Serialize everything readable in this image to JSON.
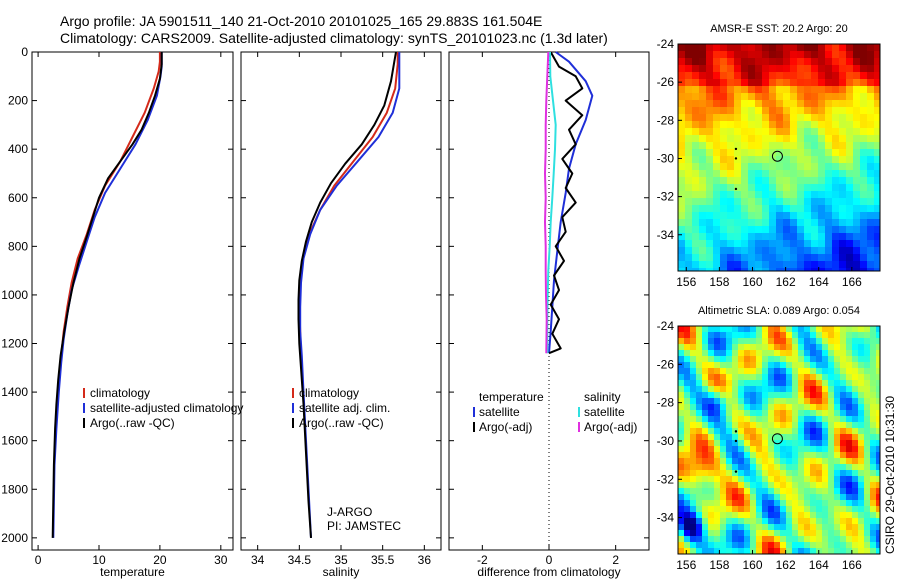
{
  "header": {
    "line1": "Argo profile: JA 5901511_140 21-Oct-2010 20101025_165 29.883S 161.504E",
    "line2": "Climatology: CARS2009. Satellite-adjusted climatology: synTS_20101023.nc (1.3d later)"
  },
  "credit": "CSIRO 29-Oct-2010 10:31:30",
  "colors": {
    "climatology": "#d42a1a",
    "satellite": "#1f2fd8",
    "argo": "#000000",
    "sal_satellite": "#2fe0e0",
    "sal_argo": "#e030e0"
  },
  "chart_data": [
    {
      "type": "line",
      "name": "temperature-profile",
      "xlabel": "temperature",
      "ylabel": "",
      "xlim": [
        -1,
        32
      ],
      "ylim": [
        2050,
        0
      ],
      "xticks": [
        0,
        10,
        20,
        30
      ],
      "yticks": [
        0,
        200,
        400,
        600,
        800,
        1000,
        1200,
        1400,
        1600,
        1800,
        2000
      ],
      "legend": [
        "climatology",
        "satellite-adjusted climatology",
        "Argo(..raw -QC)"
      ],
      "series": [
        {
          "name": "climatology",
          "color": "climatology",
          "points": [
            [
              20.0,
              0
            ],
            [
              20.0,
              40
            ],
            [
              19.8,
              80
            ],
            [
              19.0,
              150
            ],
            [
              17.5,
              250
            ],
            [
              15.5,
              350
            ],
            [
              13.5,
              450
            ],
            [
              11.0,
              550
            ],
            [
              9.3,
              650
            ],
            [
              8.0,
              750
            ],
            [
              6.5,
              850
            ],
            [
              5.5,
              950
            ],
            [
              4.8,
              1050
            ],
            [
              4.2,
              1150
            ],
            [
              3.8,
              1250
            ],
            [
              3.5,
              1350
            ]
          ]
        },
        {
          "name": "satellite",
          "color": "satellite",
          "points": [
            [
              20.3,
              0
            ],
            [
              20.3,
              60
            ],
            [
              20.1,
              100
            ],
            [
              19.5,
              180
            ],
            [
              18.0,
              280
            ],
            [
              16.0,
              380
            ],
            [
              13.5,
              480
            ],
            [
              11.0,
              580
            ],
            [
              9.3,
              680
            ],
            [
              8.0,
              780
            ],
            [
              6.7,
              880
            ],
            [
              5.5,
              980
            ],
            [
              4.8,
              1080
            ],
            [
              4.2,
              1180
            ],
            [
              3.8,
              1280
            ],
            [
              3.4,
              1400
            ],
            [
              3.0,
              1550
            ],
            [
              2.7,
              1700
            ],
            [
              2.6,
              1850
            ],
            [
              2.5,
              2000
            ]
          ]
        },
        {
          "name": "argo",
          "color": "argo",
          "points": [
            [
              20.3,
              0
            ],
            [
              20.3,
              50
            ],
            [
              20.0,
              110
            ],
            [
              19.2,
              180
            ],
            [
              18.2,
              250
            ],
            [
              17.0,
              320
            ],
            [
              15.5,
              380
            ],
            [
              13.5,
              450
            ],
            [
              11.5,
              520
            ],
            [
              10.0,
              600
            ],
            [
              9.0,
              680
            ],
            [
              8.0,
              760
            ],
            [
              6.8,
              850
            ],
            [
              5.8,
              950
            ],
            [
              5.0,
              1050
            ],
            [
              4.3,
              1150
            ],
            [
              3.7,
              1250
            ],
            [
              3.3,
              1350
            ],
            [
              3.0,
              1450
            ],
            [
              2.8,
              1550
            ],
            [
              2.6,
              1700
            ],
            [
              2.5,
              1850
            ],
            [
              2.4,
              2000
            ]
          ]
        }
      ]
    },
    {
      "type": "line",
      "name": "salinity-profile",
      "xlabel": "salinity",
      "xlim": [
        33.8,
        36.2
      ],
      "ylim": [
        2050,
        0
      ],
      "xticks": [
        34,
        34.5,
        35,
        35.5,
        36
      ],
      "legend": [
        "climatology",
        "satellite adj. clim.",
        "Argo(..raw -QC)"
      ],
      "annotation": [
        "J-ARGO",
        "PI: JAMSTEC"
      ],
      "series": [
        {
          "name": "climatology",
          "color": "climatology",
          "points": [
            [
              35.68,
              0
            ],
            [
              35.68,
              50
            ],
            [
              35.65,
              150
            ],
            [
              35.55,
              250
            ],
            [
              35.38,
              350
            ],
            [
              35.15,
              450
            ],
            [
              34.92,
              550
            ],
            [
              34.75,
              650
            ],
            [
              34.62,
              750
            ],
            [
              34.54,
              850
            ],
            [
              34.51,
              950
            ],
            [
              34.5,
              1050
            ],
            [
              34.51,
              1150
            ],
            [
              34.52,
              1250
            ]
          ]
        },
        {
          "name": "satellite",
          "color": "satellite",
          "points": [
            [
              35.7,
              0
            ],
            [
              35.7,
              60
            ],
            [
              35.7,
              150
            ],
            [
              35.62,
              250
            ],
            [
              35.45,
              350
            ],
            [
              35.2,
              450
            ],
            [
              34.95,
              550
            ],
            [
              34.75,
              650
            ],
            [
              34.63,
              750
            ],
            [
              34.55,
              850
            ],
            [
              34.52,
              950
            ],
            [
              34.51,
              1050
            ],
            [
              34.51,
              1150
            ],
            [
              34.53,
              1250
            ],
            [
              34.55,
              1400
            ],
            [
              34.58,
              1600
            ],
            [
              34.61,
              1800
            ],
            [
              34.64,
              2000
            ]
          ]
        },
        {
          "name": "argo",
          "color": "argo",
          "points": [
            [
              35.66,
              0
            ],
            [
              35.64,
              40
            ],
            [
              35.6,
              120
            ],
            [
              35.52,
              220
            ],
            [
              35.4,
              300
            ],
            [
              35.25,
              380
            ],
            [
              35.05,
              460
            ],
            [
              34.88,
              540
            ],
            [
              34.75,
              620
            ],
            [
              34.65,
              700
            ],
            [
              34.58,
              780
            ],
            [
              34.53,
              860
            ],
            [
              34.5,
              940
            ],
            [
              34.49,
              1020
            ],
            [
              34.49,
              1100
            ],
            [
              34.5,
              1200
            ],
            [
              34.52,
              1300
            ],
            [
              34.55,
              1450
            ],
            [
              34.58,
              1650
            ],
            [
              34.61,
              1850
            ],
            [
              34.64,
              2000
            ]
          ]
        }
      ]
    },
    {
      "type": "line",
      "name": "difference-profile",
      "xlabel": "difference from climatology",
      "xlim": [
        -3,
        3
      ],
      "ylim": [
        2050,
        0
      ],
      "xticks": [
        -2,
        0,
        2
      ],
      "legend": {
        "temperature": [
          "satellite",
          "Argo(-adj)"
        ],
        "salinity": [
          "satellite",
          "Argo(-adj)"
        ]
      },
      "legend_titles": [
        "temperature",
        "salinity"
      ],
      "series": [
        {
          "name": "temp-satellite",
          "color": "satellite",
          "points": [
            [
              0.2,
              0
            ],
            [
              0.6,
              40
            ],
            [
              1.1,
              120
            ],
            [
              1.3,
              180
            ],
            [
              1.1,
              280
            ],
            [
              0.8,
              380
            ],
            [
              0.6,
              480
            ],
            [
              0.5,
              580
            ],
            [
              0.35,
              700
            ],
            [
              0.25,
              820
            ],
            [
              0.15,
              940
            ],
            [
              0.1,
              1050
            ],
            [
              0.05,
              1150
            ],
            [
              0.0,
              1240
            ]
          ]
        },
        {
          "name": "temp-argo",
          "color": "argo",
          "points": [
            [
              0.05,
              0
            ],
            [
              0.3,
              60
            ],
            [
              0.8,
              100
            ],
            [
              1.0,
              150
            ],
            [
              0.5,
              200
            ],
            [
              1.0,
              260
            ],
            [
              0.6,
              320
            ],
            [
              0.8,
              380
            ],
            [
              0.4,
              440
            ],
            [
              0.7,
              500
            ],
            [
              0.5,
              560
            ],
            [
              0.8,
              620
            ],
            [
              0.4,
              680
            ],
            [
              0.5,
              740
            ],
            [
              0.2,
              800
            ],
            [
              0.45,
              860
            ],
            [
              0.15,
              920
            ],
            [
              0.3,
              980
            ],
            [
              0.05,
              1040
            ],
            [
              0.3,
              1100
            ],
            [
              0.1,
              1160
            ],
            [
              0.35,
              1220
            ],
            [
              0.0,
              1240
            ]
          ]
        },
        {
          "name": "sal-satellite",
          "color": "sal_satellite",
          "points": [
            [
              0.03,
              0
            ],
            [
              0.04,
              100
            ],
            [
              0.12,
              200
            ],
            [
              0.2,
              300
            ],
            [
              0.18,
              400
            ],
            [
              0.14,
              500
            ],
            [
              0.1,
              600
            ],
            [
              0.05,
              700
            ],
            [
              0.02,
              800
            ],
            [
              -0.02,
              900
            ],
            [
              -0.04,
              1000
            ],
            [
              -0.05,
              1100
            ],
            [
              -0.05,
              1240
            ]
          ]
        },
        {
          "name": "sal-argo",
          "color": "sal_argo",
          "points": [
            [
              -0.02,
              0
            ],
            [
              -0.05,
              100
            ],
            [
              -0.08,
              200
            ],
            [
              -0.1,
              300
            ],
            [
              -0.1,
              400
            ],
            [
              -0.12,
              500
            ],
            [
              -0.1,
              600
            ],
            [
              -0.12,
              700
            ],
            [
              -0.1,
              800
            ],
            [
              -0.1,
              900
            ],
            [
              -0.09,
              1000
            ],
            [
              -0.07,
              1100
            ],
            [
              -0.08,
              1240
            ]
          ]
        }
      ]
    },
    {
      "type": "heatmap",
      "name": "sst-map",
      "title": "AMSR-E SST: 20.2 Argo: 20",
      "xlim": [
        155.5,
        167.7
      ],
      "ylim": [
        -35.9,
        -24
      ],
      "xticks": [
        156,
        158,
        160,
        162,
        164,
        166
      ],
      "yticks": [
        -24,
        -26,
        -28,
        -30,
        -32,
        -34
      ],
      "marker": {
        "lon": 161.504,
        "lat": -29.883
      }
    },
    {
      "type": "heatmap",
      "name": "sla-map",
      "title": "Altimetric SLA: 0.089 Argo: 0.054",
      "xlim": [
        155.5,
        167.7
      ],
      "ylim": [
        -35.9,
        -24
      ],
      "xticks": [
        156,
        158,
        160,
        162,
        164,
        166
      ],
      "yticks": [
        -24,
        -26,
        -28,
        -30,
        -32,
        -34
      ],
      "marker": {
        "lon": 161.504,
        "lat": -29.883
      }
    }
  ]
}
